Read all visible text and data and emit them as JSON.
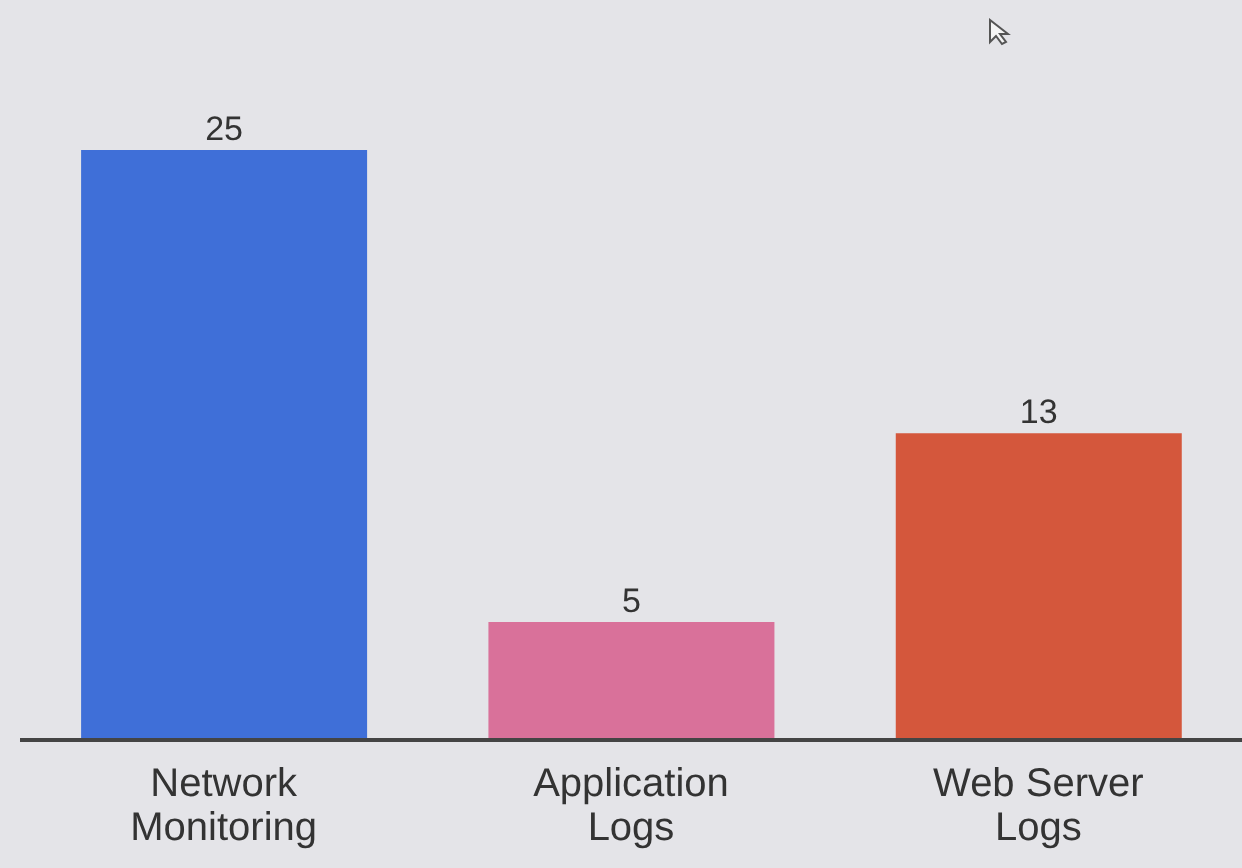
{
  "chart_data": {
    "type": "bar",
    "categories": [
      "Network Monitoring",
      "Application Logs",
      "Web Server Logs"
    ],
    "values": [
      25,
      5,
      13
    ],
    "colors": [
      "#3f6fd8",
      "#d9719a",
      "#d4573c"
    ],
    "data_labels": true
  }
}
